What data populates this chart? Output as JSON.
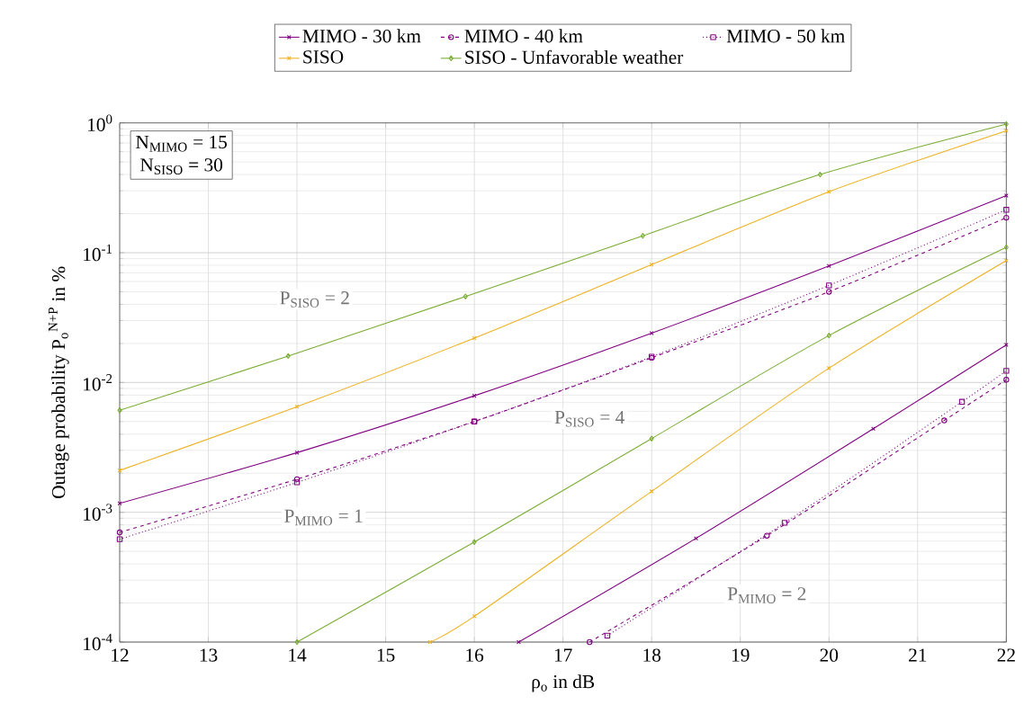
{
  "chart_data": {
    "type": "line",
    "xlabel": "ρ$_{o}$ in dB",
    "ylabel": "Outage probability P$_{o}$$^{N+P}$ in %",
    "xlim": [
      12,
      22
    ],
    "xticks": [
      12,
      13,
      14,
      15,
      16,
      17,
      18,
      19,
      20,
      21,
      22
    ],
    "ylim": [
      0.0001,
      1
    ],
    "log": true,
    "yticks": [
      {
        "value": 0.0001,
        "label": "10$^{-4}$"
      },
      {
        "value": 0.001,
        "label": "10$^{-3}$"
      },
      {
        "value": 0.01,
        "label": "10$^{-2}$"
      },
      {
        "value": 0.1,
        "label": "10$^{-1}$"
      },
      {
        "value": 1,
        "label": "10$^{0}$"
      }
    ],
    "grid": true,
    "legend": "top",
    "series": [
      {
        "name": "MIMO - 30 km",
        "color": "#800080",
        "marker": "cross",
        "line_style": "solid",
        "x": [
          12,
          14,
          16,
          18,
          20,
          22
        ],
        "values": [
          0.00117,
          0.00288,
          0.0079,
          0.024,
          0.079,
          0.275
        ]
      },
      {
        "name": "MIMO - 40 km",
        "color": "#800080",
        "marker": "circle",
        "line_style": "dashed",
        "x": [
          12,
          14,
          16,
          18,
          20,
          22
        ],
        "values": [
          0.0007,
          0.0018,
          0.005,
          0.0155,
          0.05,
          0.186
        ]
      },
      {
        "name": "MIMO - 50 km",
        "color": "#800080",
        "marker": "square",
        "line_style": "dotted",
        "x": [
          12,
          14,
          16,
          18,
          20,
          22
        ],
        "values": [
          0.00062,
          0.0017,
          0.005,
          0.0158,
          0.056,
          0.214
        ]
      },
      {
        "name": "SISO",
        "color": "#edb120",
        "marker": "cross",
        "line_style": "solid",
        "x": [
          12,
          14,
          16,
          18,
          20,
          22
        ],
        "values": [
          0.0021,
          0.0065,
          0.022,
          0.081,
          0.295,
          0.87
        ]
      },
      {
        "name": "SISO - Unfavorable weather",
        "color": "#77ac30",
        "marker": "diamond",
        "line_style": "solid",
        "x": [
          12,
          13.9,
          15.9,
          17.9,
          19.9,
          22
        ],
        "values": [
          0.0061,
          0.016,
          0.046,
          0.135,
          0.4,
          0.98
        ]
      },
      {
        "color": "#800080",
        "marker": "cross",
        "line_style": "solid",
        "x": [
          16.5,
          18.5,
          20.5,
          22
        ],
        "values": [
          0.0001,
          0.00063,
          0.0044,
          0.0195
        ]
      },
      {
        "color": "#800080",
        "marker": "circle",
        "line_style": "dashed",
        "x": [
          17.3,
          19.3,
          21.3,
          22
        ],
        "values": [
          0.0001,
          0.00066,
          0.0051,
          0.0105
        ]
      },
      {
        "color": "#800080",
        "marker": "square",
        "line_style": "dotted",
        "x": [
          17.5,
          19.5,
          21.5,
          22
        ],
        "values": [
          0.000112,
          0.00083,
          0.0071,
          0.0123
        ]
      },
      {
        "color": "#edb120",
        "marker": "cross",
        "line_style": "solid",
        "x": [
          15.5,
          16,
          18,
          20,
          22
        ],
        "values": [
          0.0001,
          0.000158,
          0.00145,
          0.0129,
          0.087
        ]
      },
      {
        "color": "#77ac30",
        "marker": "diamond",
        "line_style": "solid",
        "x": [
          14,
          16,
          18,
          20,
          22
        ],
        "values": [
          0.0001,
          0.00059,
          0.0037,
          0.023,
          0.11
        ]
      }
    ],
    "annotations": [
      "N$_{MIMO}$ = 15",
      "N$_{SISO}$ = 30",
      "P$_{SISO}$ = 2",
      "P$_{SISO}$ = 4",
      "P$_{MIMO}$ = 1",
      "P$_{MIMO}$ = 2"
    ]
  }
}
